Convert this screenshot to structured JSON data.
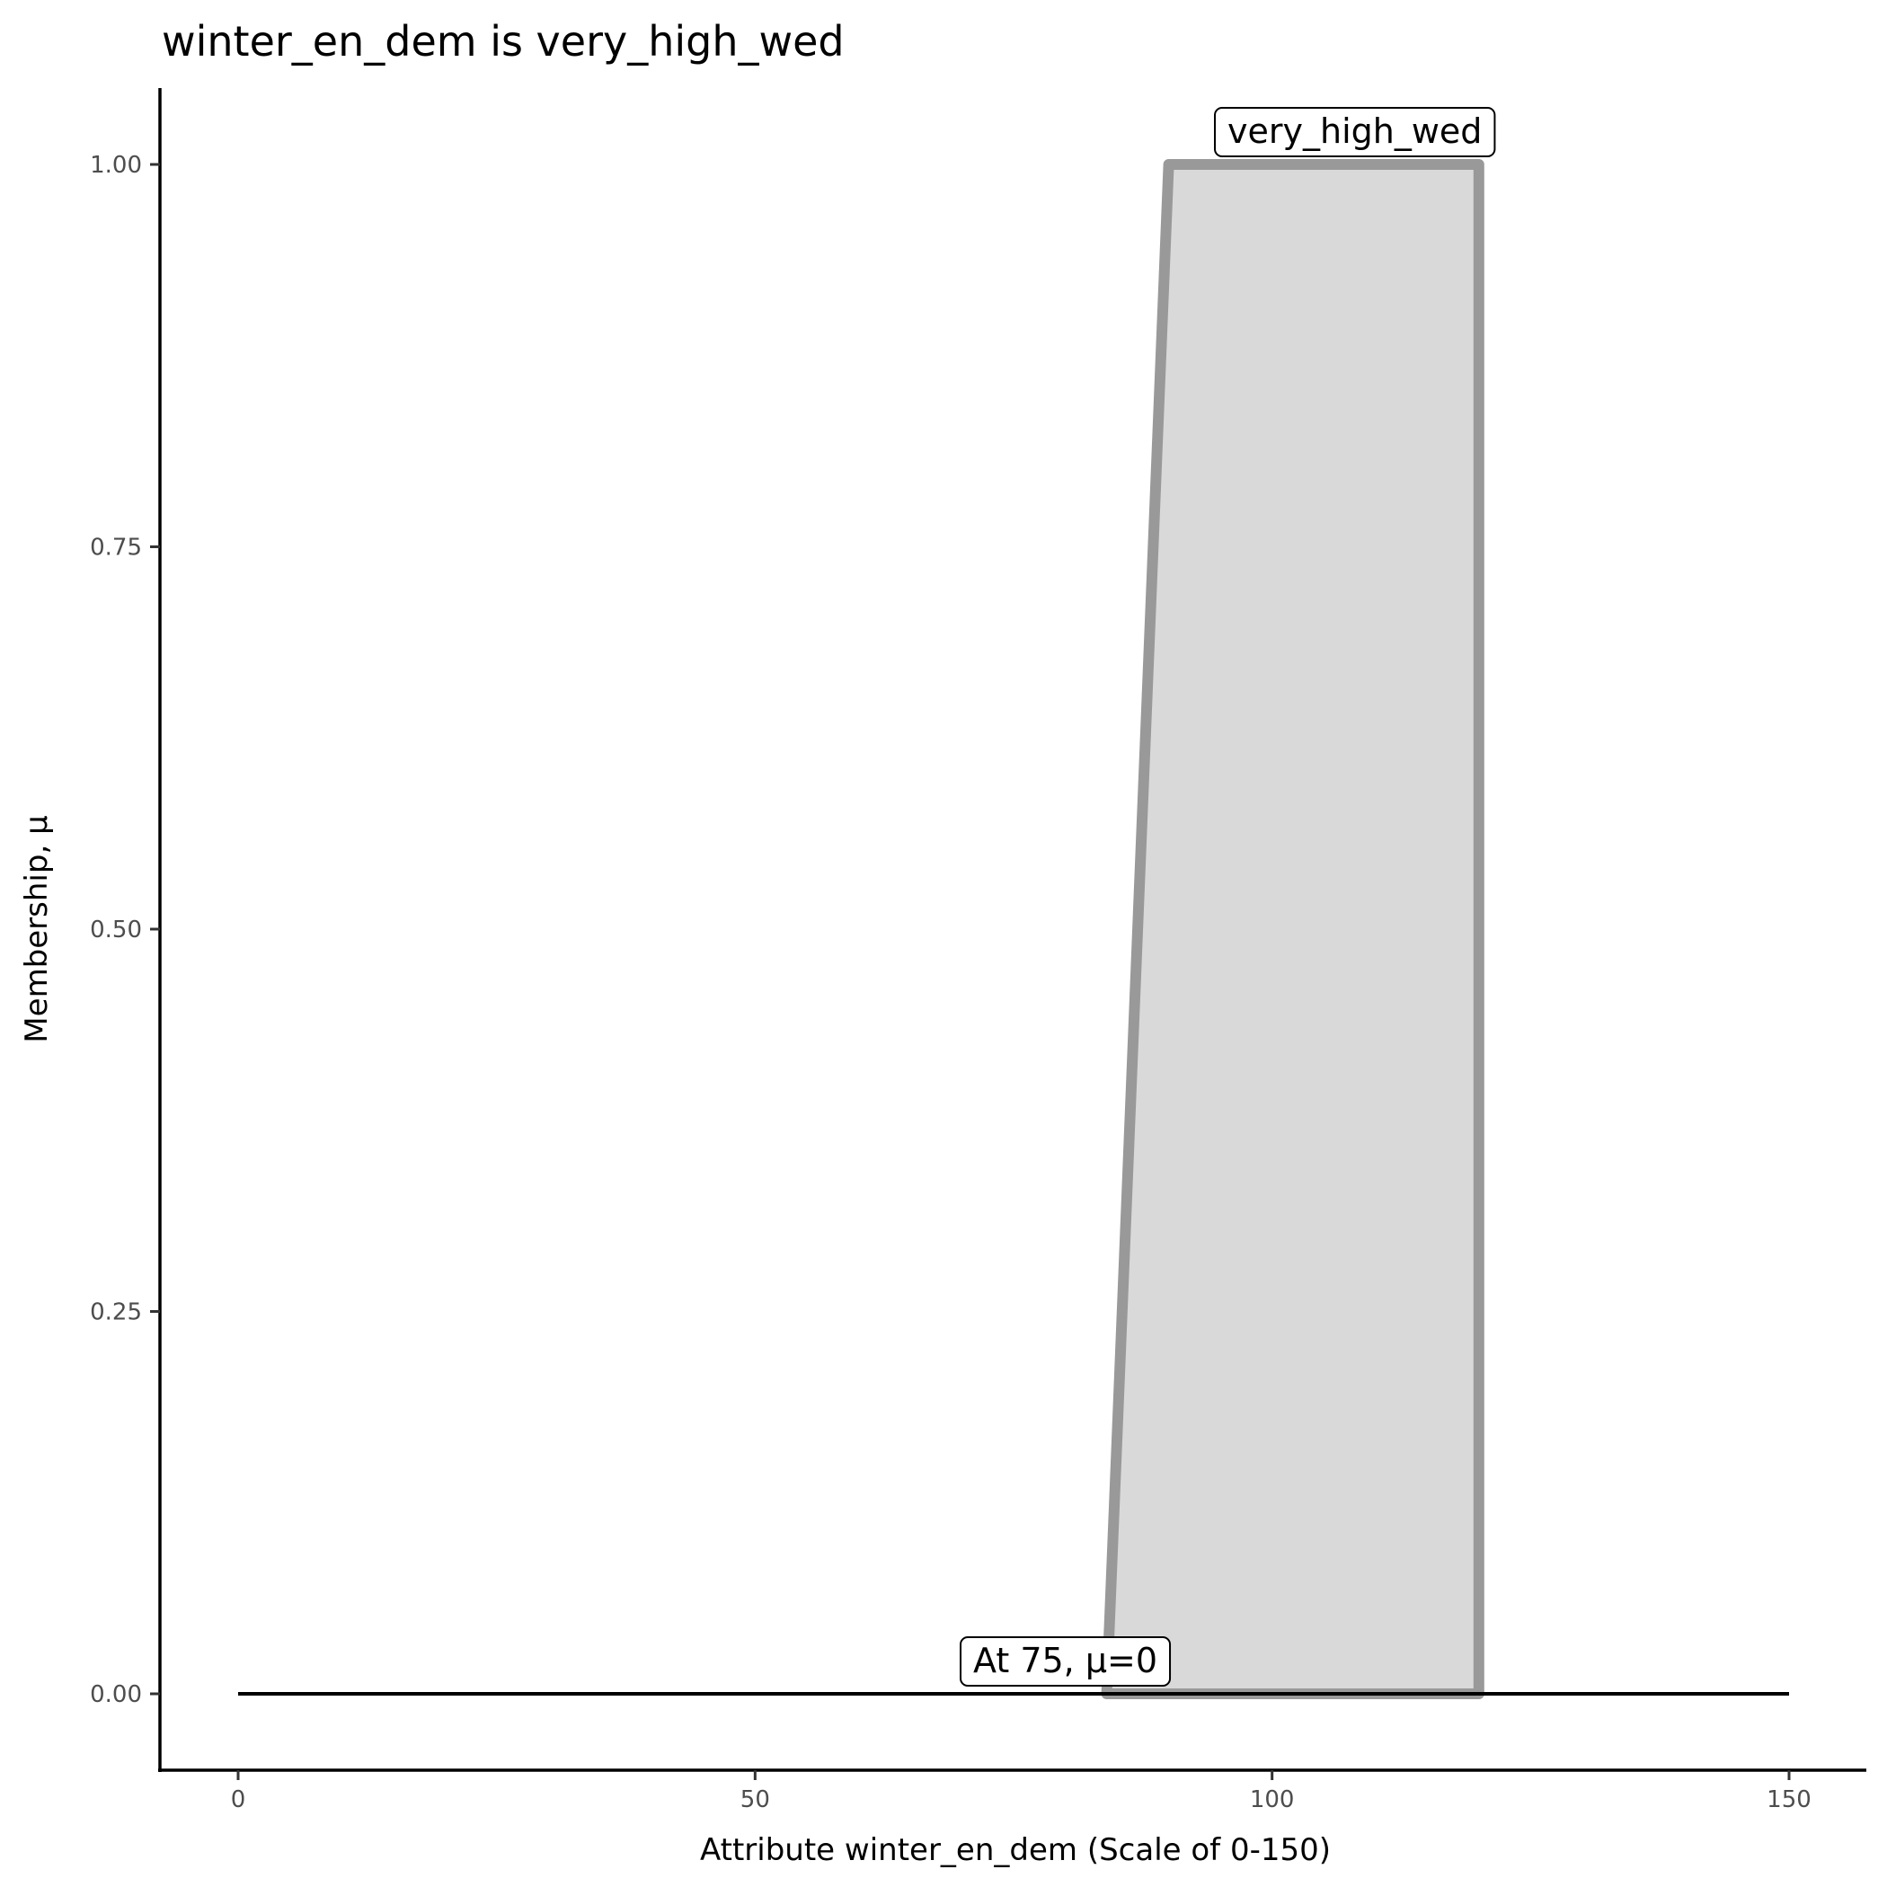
{
  "chart_data": {
    "type": "area",
    "title": "winter_en_dem is very_high_wed",
    "xlabel": "Attribute winter_en_dem (Scale of 0-150)",
    "ylabel": "Membership, μ",
    "xlim": [
      0,
      150
    ],
    "ylim": [
      0,
      1
    ],
    "x_ticks": [
      0,
      50,
      100,
      150
    ],
    "x_tick_labels": [
      "0",
      "50",
      "100",
      "150"
    ],
    "y_ticks": [
      0,
      0.25,
      0.5,
      0.75,
      1
    ],
    "y_tick_labels": [
      "0.00",
      "0.25",
      "0.50",
      "0.75",
      "1.00"
    ],
    "grid": false,
    "series": [
      {
        "name": "very_high_wed",
        "x": [
          84,
          90,
          120,
          120
        ],
        "y": [
          0,
          1,
          1,
          0
        ],
        "fill": "#d9d9d9",
        "stroke": "#999999"
      }
    ],
    "baseline": {
      "x": [
        0,
        150
      ],
      "y": [
        0,
        0
      ],
      "color": "#000000"
    },
    "annotations": [
      {
        "text": "very_high_wed",
        "x": 108,
        "y": 1
      },
      {
        "text": "At 75, μ=0",
        "x": 80,
        "y": 0
      }
    ]
  }
}
